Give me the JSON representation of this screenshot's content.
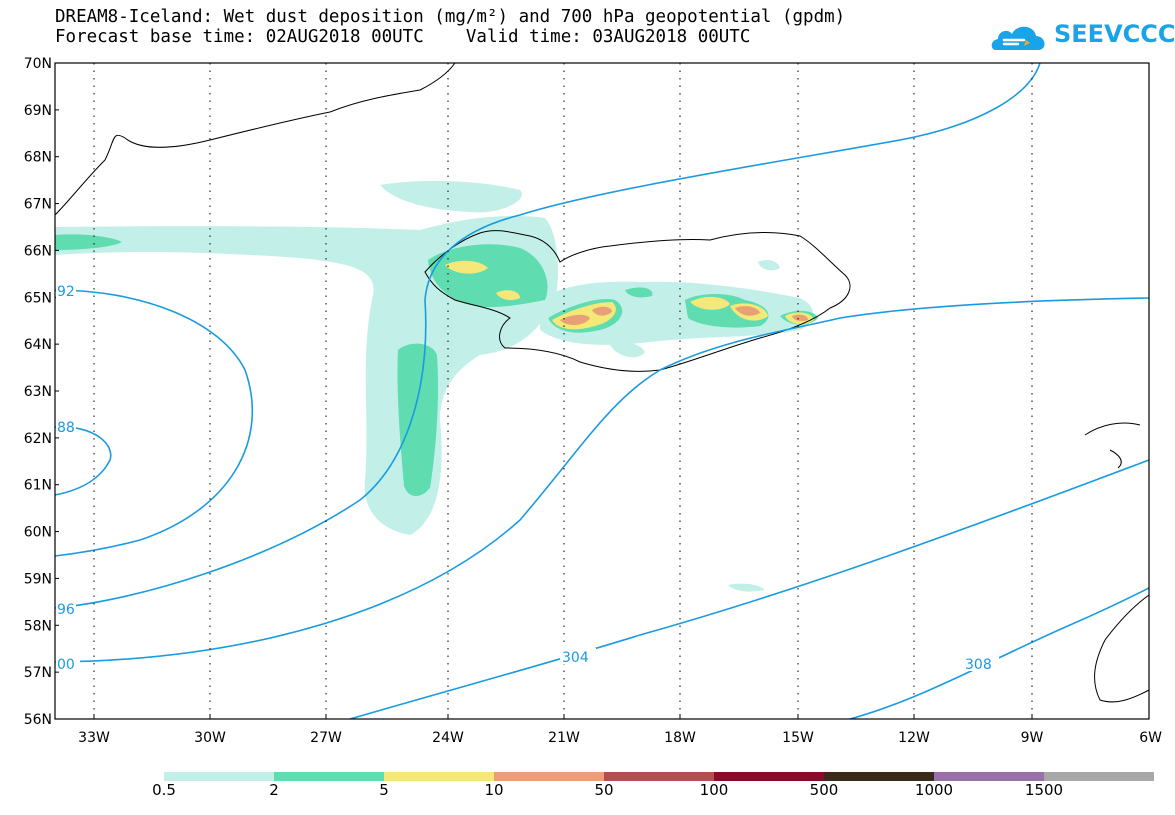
{
  "header": {
    "title_line1": "DREAM8-Iceland: Wet dust deposition (mg/m²) and 700 hPa geopotential (gpdm)",
    "title_line2": "Forecast base time: 02AUG2018 00UTC    Valid time: 03AUG2018 00UTC"
  },
  "logo": {
    "text": "SEEVCCC",
    "icon": "cloud-icon"
  },
  "map": {
    "lat_labels": [
      "70N",
      "69N",
      "68N",
      "67N",
      "66N",
      "65N",
      "64N",
      "63N",
      "62N",
      "61N",
      "60N",
      "59N",
      "58N",
      "57N",
      "56N"
    ],
    "lon_labels": [
      "33W",
      "30W",
      "27W",
      "24W",
      "21W",
      "18W",
      "15W",
      "12W",
      "9W",
      "6W"
    ],
    "grid": "dotted"
  },
  "contours": {
    "color": "#1a9be0",
    "labels": [
      "92",
      "88",
      "96",
      "00",
      "304",
      "308"
    ]
  },
  "legend": {
    "colors": [
      "#c2f0e8",
      "#5fdcb0",
      "#f5e878",
      "#e8a076",
      "#b05050",
      "#8a0a2a",
      "#3a2a1a",
      "#9a70a8",
      "#a8a8a8"
    ],
    "labels": [
      "0.5",
      "2",
      "5",
      "10",
      "50",
      "100",
      "500",
      "1000",
      "1500"
    ]
  }
}
